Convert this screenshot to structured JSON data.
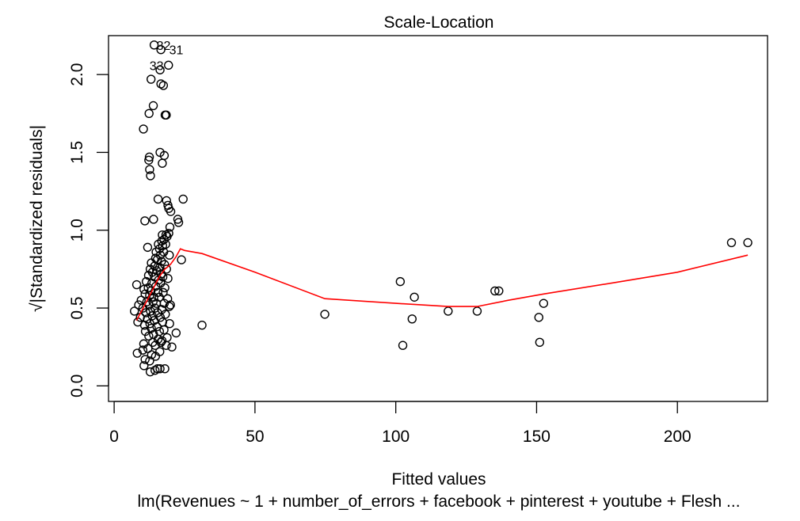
{
  "chart_data": {
    "type": "scatter",
    "title": "Scale-Location",
    "xlabel": "Fitted values",
    "ylabel_prefix": "√",
    "ylabel": "|Standardized residuals|",
    "subtitle": "lm(Revenues ~ 1 + number_of_errors + facebook + pinterest + youtube + Flesh ...",
    "xlim": [
      -2,
      232
    ],
    "ylim": [
      -0.1,
      2.25
    ],
    "xticks": [
      0,
      50,
      100,
      150,
      200
    ],
    "yticks": [
      0.0,
      0.5,
      1.0,
      1.5,
      2.0
    ],
    "xtick_labels": [
      "0",
      "50",
      "100",
      "150",
      "200"
    ],
    "ytick_labels": [
      "0.0",
      "0.5",
      "1.0",
      "1.5",
      "2.0"
    ],
    "grid": false,
    "colors": {
      "points": "#000000",
      "smoother": "#ff0000"
    },
    "annotations": [
      {
        "text": "32",
        "x": 14.2,
        "y": 2.19
      },
      {
        "text": "31",
        "x": 18.7,
        "y": 2.16
      },
      {
        "text": "33",
        "x": 11.7,
        "y": 2.06
      }
    ],
    "points": [
      [
        14.2,
        2.19
      ],
      [
        16.6,
        2.16
      ],
      [
        19.3,
        2.06
      ],
      [
        16.3,
        2.03
      ],
      [
        13.1,
        1.97
      ],
      [
        16.6,
        1.94
      ],
      [
        17.5,
        1.93
      ],
      [
        13.9,
        1.8
      ],
      [
        12.4,
        1.75
      ],
      [
        18.1,
        1.74
      ],
      [
        18.5,
        1.74
      ],
      [
        10.4,
        1.65
      ],
      [
        16.3,
        1.5
      ],
      [
        17.8,
        1.48
      ],
      [
        12.5,
        1.47
      ],
      [
        12.3,
        1.45
      ],
      [
        17.1,
        1.43
      ],
      [
        12.6,
        1.39
      ],
      [
        12.9,
        1.35
      ],
      [
        24.5,
        1.2
      ],
      [
        15.6,
        1.2
      ],
      [
        18.6,
        1.19
      ],
      [
        19.1,
        1.16
      ],
      [
        19.4,
        1.14
      ],
      [
        20.1,
        1.12
      ],
      [
        14.0,
        1.07
      ],
      [
        10.9,
        1.06
      ],
      [
        22.6,
        1.07
      ],
      [
        22.9,
        1.05
      ],
      [
        19.8,
        1.02
      ],
      [
        19.4,
        0.98
      ],
      [
        17.1,
        0.97
      ],
      [
        18.4,
        0.97
      ],
      [
        18.8,
        0.96
      ],
      [
        17.7,
        0.94
      ],
      [
        16.9,
        0.93
      ],
      [
        18.3,
        0.91
      ],
      [
        15.7,
        0.91
      ],
      [
        17.2,
        0.9
      ],
      [
        11.9,
        0.89
      ],
      [
        16.1,
        0.88
      ],
      [
        14.9,
        0.86
      ],
      [
        17.6,
        0.86
      ],
      [
        16.4,
        0.84
      ],
      [
        19.6,
        0.84
      ],
      [
        14.7,
        0.82
      ],
      [
        23.9,
        0.81
      ],
      [
        15.3,
        0.81
      ],
      [
        16.8,
        0.8
      ],
      [
        13.2,
        0.79
      ],
      [
        17.9,
        0.78
      ],
      [
        14.4,
        0.77
      ],
      [
        16.2,
        0.76
      ],
      [
        12.8,
        0.75
      ],
      [
        18.6,
        0.75
      ],
      [
        15.1,
        0.74
      ],
      [
        13.6,
        0.73
      ],
      [
        16.7,
        0.72
      ],
      [
        12.2,
        0.71
      ],
      [
        14.3,
        0.7
      ],
      [
        17.3,
        0.7
      ],
      [
        19.1,
        0.69
      ],
      [
        15.8,
        0.68
      ],
      [
        11.4,
        0.67
      ],
      [
        13.4,
        0.66
      ],
      [
        16.5,
        0.66
      ],
      [
        8.0,
        0.65
      ],
      [
        14.8,
        0.64
      ],
      [
        12.1,
        0.63
      ],
      [
        18.0,
        0.63
      ],
      [
        10.6,
        0.62
      ],
      [
        13.1,
        0.61
      ],
      [
        15.5,
        0.6
      ],
      [
        17.4,
        0.6
      ],
      [
        11.0,
        0.59
      ],
      [
        12.6,
        0.58
      ],
      [
        14.1,
        0.57
      ],
      [
        16.0,
        0.57
      ],
      [
        19.0,
        0.56
      ],
      [
        9.6,
        0.55
      ],
      [
        13.8,
        0.54
      ],
      [
        11.6,
        0.54
      ],
      [
        15.0,
        0.53
      ],
      [
        17.8,
        0.53
      ],
      [
        8.7,
        0.52
      ],
      [
        12.4,
        0.52
      ],
      [
        20.0,
        0.52
      ],
      [
        19.6,
        0.51
      ],
      [
        10.2,
        0.5
      ],
      [
        14.5,
        0.5
      ],
      [
        16.9,
        0.49
      ],
      [
        12.9,
        0.48
      ],
      [
        7.2,
        0.48
      ],
      [
        11.3,
        0.47
      ],
      [
        15.4,
        0.47
      ],
      [
        18.2,
        0.46
      ],
      [
        13.5,
        0.45
      ],
      [
        9.3,
        0.44
      ],
      [
        16.4,
        0.44
      ],
      [
        11.8,
        0.43
      ],
      [
        14.2,
        0.42
      ],
      [
        8.4,
        0.41
      ],
      [
        17.2,
        0.41
      ],
      [
        19.7,
        0.4
      ],
      [
        12.7,
        0.4
      ],
      [
        10.8,
        0.39
      ],
      [
        15.2,
        0.38
      ],
      [
        13.2,
        0.37
      ],
      [
        17.7,
        0.36
      ],
      [
        11.1,
        0.35
      ],
      [
        16.1,
        0.35
      ],
      [
        22.0,
        0.34
      ],
      [
        14.0,
        0.33
      ],
      [
        12.3,
        0.32
      ],
      [
        18.8,
        0.31
      ],
      [
        15.6,
        0.3
      ],
      [
        17.0,
        0.29
      ],
      [
        13.7,
        0.28
      ],
      [
        16.6,
        0.28
      ],
      [
        10.5,
        0.27
      ],
      [
        18.5,
        0.26
      ],
      [
        14.6,
        0.26
      ],
      [
        20.5,
        0.25
      ],
      [
        12.0,
        0.24
      ],
      [
        10.2,
        0.23
      ],
      [
        16.2,
        0.22
      ],
      [
        8.2,
        0.21
      ],
      [
        13.3,
        0.2
      ],
      [
        14.7,
        0.19
      ],
      [
        11.0,
        0.17
      ],
      [
        12.6,
        0.16
      ],
      [
        10.6,
        0.13
      ],
      [
        15.4,
        0.11
      ],
      [
        18.0,
        0.11
      ],
      [
        16.3,
        0.11
      ],
      [
        14.5,
        0.1
      ],
      [
        12.8,
        0.09
      ],
      [
        31.2,
        0.39
      ],
      [
        74.8,
        0.46
      ],
      [
        101.6,
        0.67
      ],
      [
        102.5,
        0.26
      ],
      [
        105.8,
        0.43
      ],
      [
        106.6,
        0.57
      ],
      [
        118.6,
        0.48
      ],
      [
        128.9,
        0.48
      ],
      [
        135.2,
        0.61
      ],
      [
        136.6,
        0.61
      ],
      [
        150.8,
        0.44
      ],
      [
        151.1,
        0.28
      ],
      [
        152.5,
        0.53
      ],
      [
        219.2,
        0.92
      ],
      [
        225.0,
        0.92
      ]
    ],
    "smoother": [
      [
        7.9,
        0.42
      ],
      [
        10.0,
        0.49
      ],
      [
        12.0,
        0.56
      ],
      [
        14.0,
        0.63
      ],
      [
        16.0,
        0.7
      ],
      [
        18.0,
        0.75
      ],
      [
        20.0,
        0.78
      ],
      [
        22.0,
        0.83
      ],
      [
        23.5,
        0.88
      ],
      [
        25.0,
        0.87
      ],
      [
        31.2,
        0.85
      ],
      [
        50.0,
        0.73
      ],
      [
        74.8,
        0.56
      ],
      [
        100.0,
        0.53
      ],
      [
        118.6,
        0.51
      ],
      [
        128.9,
        0.51
      ],
      [
        140.0,
        0.55
      ],
      [
        152.5,
        0.59
      ],
      [
        180.0,
        0.67
      ],
      [
        200.0,
        0.73
      ],
      [
        225.0,
        0.84
      ]
    ]
  }
}
